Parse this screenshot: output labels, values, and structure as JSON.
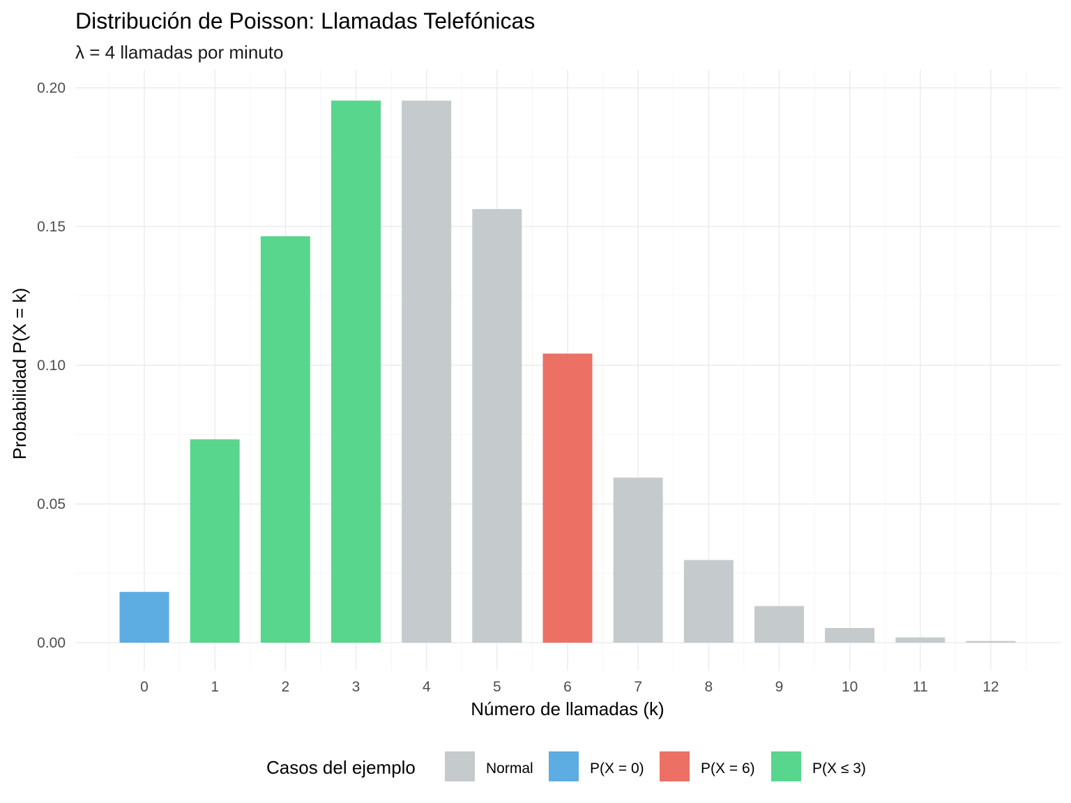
{
  "chart_data": {
    "type": "bar",
    "title": "Distribución de Poisson: Llamadas Telefónicas",
    "subtitle": "λ = 4 llamadas por minuto",
    "xlabel": "Número de llamadas (k)",
    "ylabel": "Probabilidad P(X = k)",
    "categories": [
      "0",
      "1",
      "2",
      "3",
      "4",
      "5",
      "6",
      "7",
      "8",
      "9",
      "10",
      "11",
      "12"
    ],
    "values": [
      0.0183,
      0.0733,
      0.1465,
      0.1954,
      0.1954,
      0.1563,
      0.1042,
      0.0595,
      0.0298,
      0.0132,
      0.0053,
      0.0019,
      0.0006
    ],
    "groups": [
      "P(X = 0)",
      "P(X ≤ 3)",
      "P(X ≤ 3)",
      "P(X ≤ 3)",
      "Normal",
      "Normal",
      "P(X = 6)",
      "Normal",
      "Normal",
      "Normal",
      "Normal",
      "Normal",
      "Normal"
    ],
    "ylim": [
      0,
      0.2
    ],
    "yticks": [
      "0.00",
      "0.05",
      "0.10",
      "0.15",
      "0.20"
    ],
    "grid": true,
    "legend": {
      "title": "Casos del ejemplo",
      "placement": "bottom",
      "entries": [
        {
          "label": "Normal",
          "color": "#c5cacd"
        },
        {
          "label": "P(X = 0)",
          "color": "#5dade2"
        },
        {
          "label": "P(X = 6)",
          "color": "#ec7063"
        },
        {
          "label": "P(X ≤ 3)",
          "color": "#58d68d"
        }
      ]
    }
  }
}
